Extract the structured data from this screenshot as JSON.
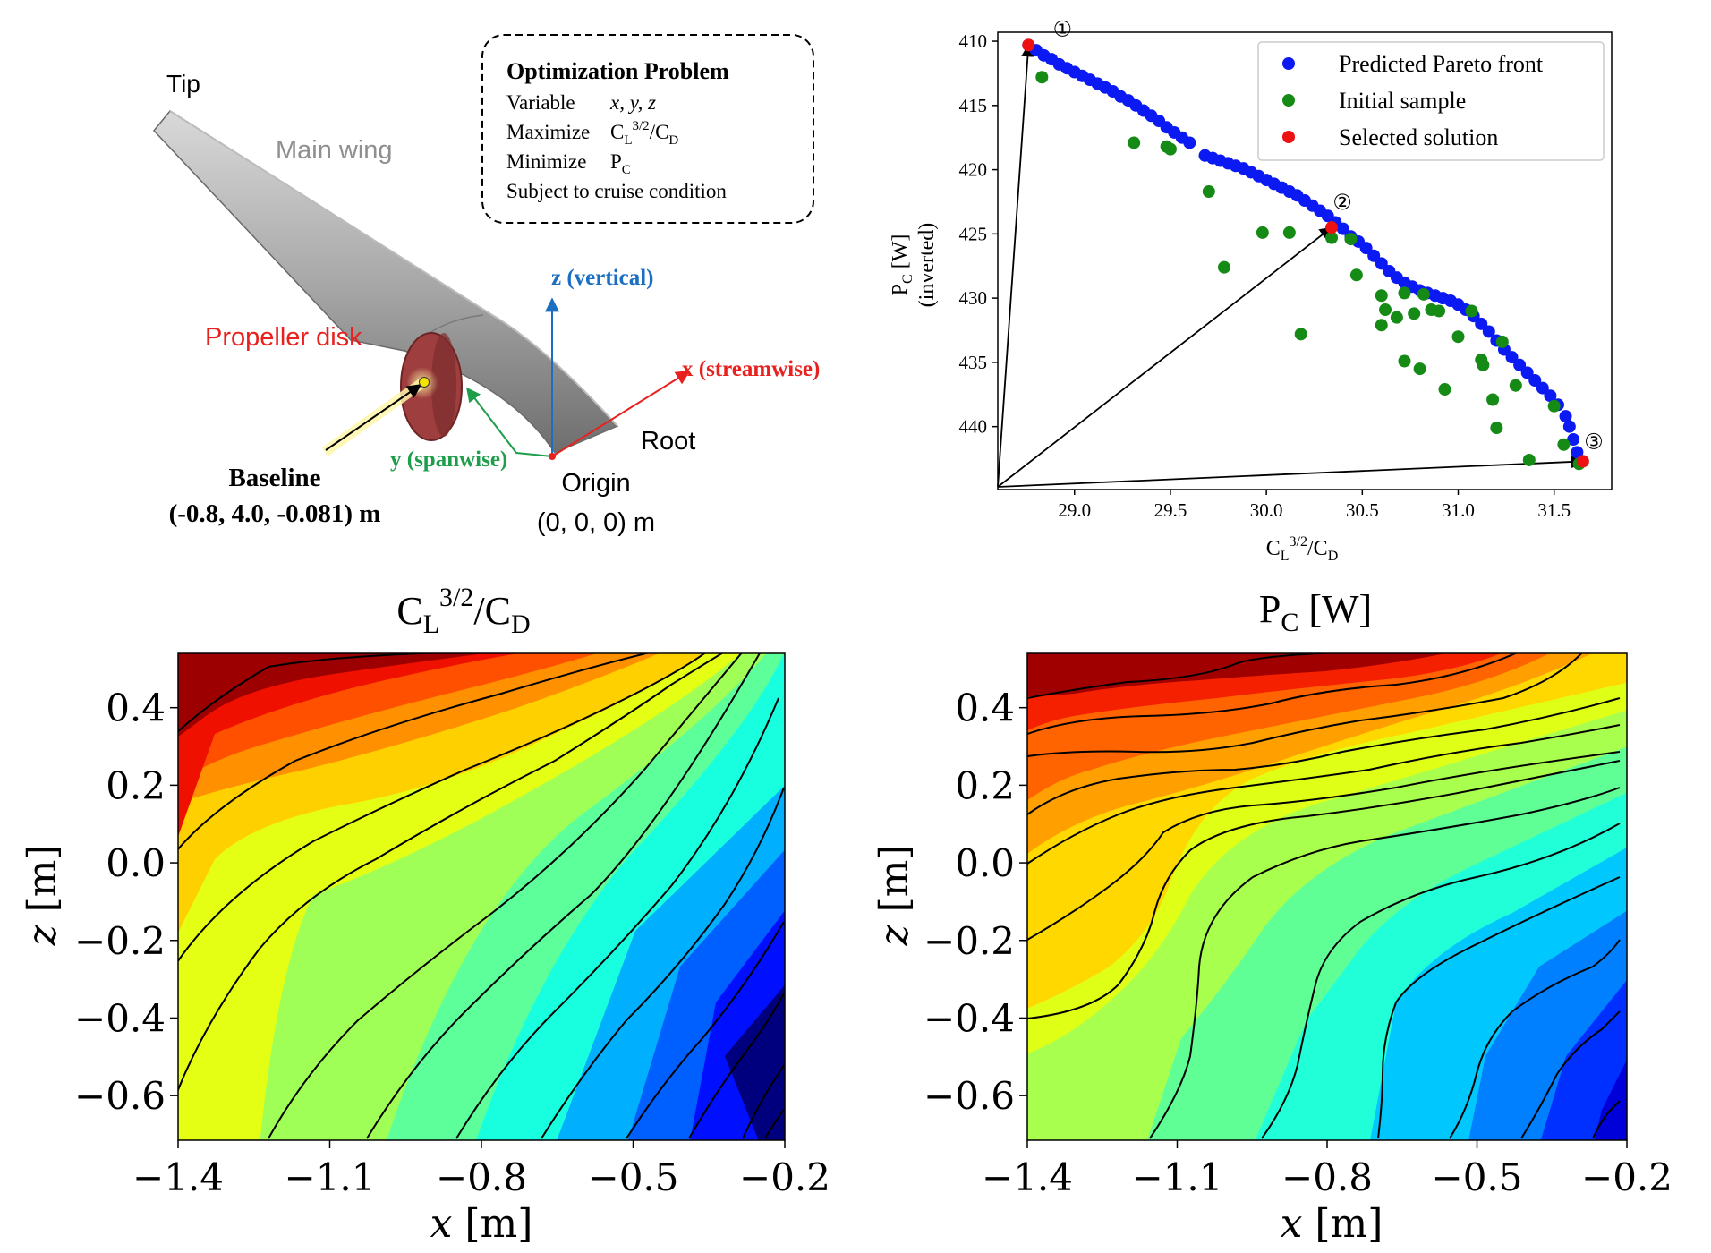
{
  "diagram": {
    "labels": {
      "tip": "Tip",
      "main_wing": "Main wing",
      "propeller_disk": "Propeller  disk",
      "root": "Root",
      "z_axis": "z (vertical)",
      "x_axis": "x (streamwise)",
      "y_axis": "y (spanwise)",
      "baseline_title": "Baseline",
      "baseline_coords": "(-0.8, 4.0, -0.081) m",
      "origin_title": "Origin",
      "origin_coords": "(0, 0, 0) m"
    },
    "optimization_box": {
      "title": "Optimization Problem",
      "variable_label": "Variable",
      "variable_value": "x, y, z",
      "maximize_label": "Maximize",
      "maximize_value_base": "C",
      "maximize_value_sub1": "L",
      "maximize_value_sup": "3/2",
      "maximize_value_mid": "/C",
      "maximize_value_sub2": "D",
      "minimize_label": "Minimize",
      "minimize_value_base": "P",
      "minimize_value_sub": "C",
      "subject": "Subject to cruise condition"
    },
    "colors": {
      "propeller": "#9e3e3e",
      "wing": "#8f8f8f",
      "z_axis": "#1b6fc2",
      "x_axis": "#e8211e",
      "y_axis": "#1e9e4a",
      "baseline_marker": "#f5e400"
    }
  },
  "chart_data": [
    {
      "type": "scatter",
      "title": "",
      "xlabel_base": "C",
      "xlabel_sub1": "L",
      "xlabel_sup": "3/2",
      "xlabel_mid": "/C",
      "xlabel_sub2": "D",
      "ylabel_base": "P",
      "ylabel_sub": "C",
      "ylabel_unit": " [W]",
      "ylabel_note": "(inverted)",
      "xlim": [
        28.6,
        31.8
      ],
      "ylim": [
        409.3,
        444.9
      ],
      "y_inverted": true,
      "xticks": [
        29.0,
        29.5,
        30.0,
        30.5,
        31.0,
        31.5
      ],
      "xtick_labels": [
        "29.0",
        "29.5",
        "30.0",
        "30.5",
        "31.0",
        "31.5"
      ],
      "yticks": [
        410,
        415,
        420,
        425,
        430,
        435,
        440
      ],
      "ytick_labels": [
        "410",
        "415",
        "420",
        "425",
        "430",
        "435",
        "440"
      ],
      "legend_position": "top-right",
      "series": [
        {
          "name": "Predicted Pareto front",
          "color": "#0b19f2",
          "points": [
            [
              28.76,
              410.3
            ],
            [
              28.8,
              410.7
            ],
            [
              28.84,
              411.1
            ],
            [
              28.88,
              411.4
            ],
            [
              28.92,
              411.8
            ],
            [
              28.96,
              412.1
            ],
            [
              29.0,
              412.4
            ],
            [
              29.04,
              412.7
            ],
            [
              29.08,
              413.0
            ],
            [
              29.12,
              413.3
            ],
            [
              29.16,
              413.6
            ],
            [
              29.2,
              413.9
            ],
            [
              29.24,
              414.3
            ],
            [
              29.28,
              414.6
            ],
            [
              29.32,
              415.0
            ],
            [
              29.36,
              415.4
            ],
            [
              29.4,
              415.8
            ],
            [
              29.44,
              416.2
            ],
            [
              29.48,
              416.7
            ],
            [
              29.52,
              417.1
            ],
            [
              29.56,
              417.5
            ],
            [
              29.6,
              417.9
            ],
            [
              29.68,
              418.9
            ],
            [
              29.72,
              419.1
            ],
            [
              29.76,
              419.3
            ],
            [
              29.8,
              419.5
            ],
            [
              29.84,
              419.7
            ],
            [
              29.88,
              419.9
            ],
            [
              29.92,
              420.2
            ],
            [
              29.96,
              420.5
            ],
            [
              30.0,
              420.8
            ],
            [
              30.04,
              421.1
            ],
            [
              30.08,
              421.4
            ],
            [
              30.12,
              421.7
            ],
            [
              30.16,
              422.0
            ],
            [
              30.2,
              422.4
            ],
            [
              30.24,
              422.8
            ],
            [
              30.28,
              423.2
            ],
            [
              30.32,
              423.6
            ],
            [
              30.36,
              424.1
            ],
            [
              30.4,
              424.6
            ],
            [
              30.44,
              425.2
            ],
            [
              30.48,
              425.6
            ],
            [
              30.52,
              426.1
            ],
            [
              30.56,
              426.7
            ],
            [
              30.6,
              427.3
            ],
            [
              30.64,
              427.9
            ],
            [
              30.68,
              428.4
            ],
            [
              30.72,
              428.8
            ],
            [
              30.76,
              429.1
            ],
            [
              30.8,
              429.4
            ],
            [
              30.84,
              429.6
            ],
            [
              30.88,
              429.8
            ],
            [
              30.92,
              430.0
            ],
            [
              30.96,
              430.2
            ],
            [
              31.0,
              430.5
            ],
            [
              31.04,
              430.9
            ],
            [
              31.08,
              431.4
            ],
            [
              31.12,
              432.0
            ],
            [
              31.16,
              432.6
            ],
            [
              31.2,
              433.3
            ],
            [
              31.24,
              434.0
            ],
            [
              31.28,
              434.6
            ],
            [
              31.32,
              435.2
            ],
            [
              31.36,
              435.8
            ],
            [
              31.4,
              436.4
            ],
            [
              31.44,
              437.0
            ],
            [
              31.48,
              437.6
            ],
            [
              31.52,
              438.3
            ],
            [
              31.56,
              439.2
            ],
            [
              31.58,
              440.0
            ],
            [
              31.6,
              441.0
            ],
            [
              31.62,
              442.0
            ],
            [
              31.64,
              442.7
            ]
          ]
        },
        {
          "name": "Initial sample",
          "color": "#158a15",
          "points": [
            [
              28.83,
              412.8
            ],
            [
              29.31,
              417.9
            ],
            [
              29.48,
              418.2
            ],
            [
              29.5,
              418.4
            ],
            [
              29.7,
              421.7
            ],
            [
              29.78,
              427.6
            ],
            [
              29.98,
              424.9
            ],
            [
              30.12,
              424.9
            ],
            [
              30.18,
              432.8
            ],
            [
              30.34,
              425.3
            ],
            [
              30.44,
              425.4
            ],
            [
              30.47,
              428.2
            ],
            [
              30.6,
              429.8
            ],
            [
              30.6,
              432.1
            ],
            [
              30.62,
              430.9
            ],
            [
              30.68,
              431.5
            ],
            [
              30.72,
              429.6
            ],
            [
              30.72,
              434.9
            ],
            [
              30.77,
              431.2
            ],
            [
              30.8,
              435.5
            ],
            [
              30.82,
              429.7
            ],
            [
              30.86,
              430.9
            ],
            [
              30.9,
              431.0
            ],
            [
              30.93,
              437.1
            ],
            [
              31.0,
              433.0
            ],
            [
              31.07,
              431.0
            ],
            [
              31.12,
              434.8
            ],
            [
              31.13,
              435.2
            ],
            [
              31.18,
              437.9
            ],
            [
              31.2,
              440.1
            ],
            [
              31.23,
              433.4
            ],
            [
              31.3,
              436.8
            ],
            [
              31.5,
              438.4
            ],
            [
              31.37,
              442.6
            ],
            [
              31.55,
              441.4
            ],
            [
              31.63,
              442.9
            ]
          ]
        },
        {
          "name": "Selected solution",
          "color": "#ee1111",
          "points": [
            [
              28.76,
              410.3
            ],
            [
              30.34,
              424.5
            ],
            [
              31.65,
              442.7
            ]
          ]
        }
      ],
      "annotations": [
        {
          "text": "①",
          "x": 28.76,
          "y": 410.3
        },
        {
          "text": "②",
          "x": 30.34,
          "y": 424.5
        },
        {
          "text": "③",
          "x": 31.65,
          "y": 442.7
        }
      ]
    },
    {
      "type": "contour",
      "title_base": "C",
      "title_sub1": "L",
      "title_sup": "3/2",
      "title_mid": "/C",
      "title_sub2": "D",
      "xlabel_var": "x",
      "xlabel_unit": " [m]",
      "ylabel_var": "z",
      "ylabel_unit": " [m]",
      "xlim": [
        -1.4,
        -0.2
      ],
      "ylim": [
        -0.715,
        0.54
      ],
      "xticks": [
        -1.4,
        -1.1,
        -0.8,
        -0.5,
        -0.2
      ],
      "xtick_labels": [
        "−1.4",
        "−1.1",
        "−0.8",
        "−0.5",
        "−0.2"
      ],
      "yticks": [
        0.4,
        0.2,
        0.0,
        -0.2,
        -0.4,
        -0.6
      ],
      "ytick_labels": [
        "0.4",
        "0.2",
        "0.0",
        "−0.2",
        "−0.4",
        "−0.6"
      ],
      "colormap": "jet",
      "levels": 12
    },
    {
      "type": "contour",
      "title_base": "P",
      "title_sub": "C",
      "title_unit": " [W]",
      "xlabel_var": "x",
      "xlabel_unit": " [m]",
      "ylabel_var": "z",
      "ylabel_unit": " [m]",
      "xlim": [
        -1.4,
        -0.2
      ],
      "ylim": [
        -0.715,
        0.54
      ],
      "xticks": [
        -1.4,
        -1.1,
        -0.8,
        -0.5,
        -0.2
      ],
      "xtick_labels": [
        "−1.4",
        "−1.1",
        "−0.8",
        "−0.5",
        "−0.2"
      ],
      "yticks": [
        0.4,
        0.2,
        0.0,
        -0.2,
        -0.4,
        -0.6
      ],
      "ytick_labels": [
        "0.4",
        "0.2",
        "0.0",
        "−0.2",
        "−0.4",
        "−0.6"
      ],
      "colormap": "jet",
      "levels": 14
    }
  ]
}
